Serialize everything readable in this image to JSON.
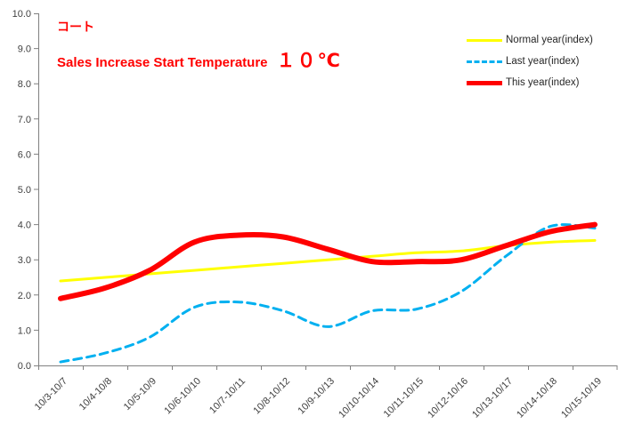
{
  "header": {
    "product_label": "コート",
    "subtitle": "Sales Increase Start Temperature",
    "temperature": "１０℃"
  },
  "accent_color": "#FF0000",
  "axis_color": "#808080",
  "label_color": "#404040",
  "chart_data": {
    "type": "line",
    "title": "コート",
    "subtitle": "Sales Increase Start Temperature １０℃",
    "categories": [
      "10/3-10/7",
      "10/4-10/8",
      "10/5-10/9",
      "10/6-10/10",
      "10/7-10/11",
      "10/8-10/12",
      "10/9-10/13",
      "10/10-10/14",
      "10/11-10/15",
      "10/12-10/16",
      "10/13-10/17",
      "10/14-10/18",
      "10/15-10/19"
    ],
    "y_ticks": [
      "0.0",
      "1.0",
      "2.0",
      "3.0",
      "4.0",
      "5.0",
      "6.0",
      "7.0",
      "8.0",
      "9.0",
      "10.0"
    ],
    "ylim": [
      0,
      10
    ],
    "grid": false,
    "legend_position": "top-right",
    "series": [
      {
        "name": "Normal year(index)",
        "color": "#FFFF00",
        "line_style": "solid",
        "line_width": 3,
        "values": [
          2.4,
          2.5,
          2.6,
          2.7,
          2.8,
          2.9,
          3.0,
          3.1,
          3.2,
          3.25,
          3.4,
          3.5,
          3.55
        ]
      },
      {
        "name": "Last year(index)",
        "color": "#00B0F0",
        "line_style": "dashed",
        "line_width": 3,
        "values": [
          0.1,
          0.35,
          0.8,
          1.65,
          1.8,
          1.55,
          1.1,
          1.55,
          1.6,
          2.1,
          3.1,
          3.95,
          3.9
        ]
      },
      {
        "name": "This year(index)",
        "color": "#FF0000",
        "line_style": "solid",
        "line_width": 6,
        "values": [
          1.9,
          2.2,
          2.7,
          3.5,
          3.7,
          3.65,
          3.3,
          2.95,
          2.95,
          3.0,
          3.4,
          3.8,
          4.0
        ]
      }
    ]
  }
}
